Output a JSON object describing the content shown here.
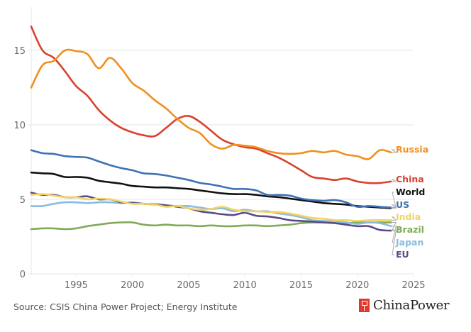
{
  "chart_data": {
    "type": "line",
    "title": "",
    "xlabel": "",
    "ylabel": "",
    "xlim": [
      1991,
      2025
    ],
    "ylim": [
      0,
      17.5
    ],
    "x_ticks": [
      1995,
      2000,
      2005,
      2010,
      2015,
      2020,
      2025
    ],
    "y_ticks": [
      0,
      5,
      10,
      15
    ],
    "grid": "horizontal",
    "legend": "right (direct labels)",
    "x": [
      1991,
      1992,
      1993,
      1994,
      1995,
      1996,
      1997,
      1998,
      1999,
      2000,
      2001,
      2002,
      2003,
      2004,
      2005,
      2006,
      2007,
      2008,
      2009,
      2010,
      2011,
      2012,
      2013,
      2014,
      2015,
      2016,
      2017,
      2018,
      2019,
      2020,
      2021,
      2022,
      2023
    ],
    "series": [
      {
        "name": "Russia",
        "color": "#f0901e",
        "values": [
          12.5,
          14.0,
          14.3,
          15.0,
          14.95,
          14.75,
          13.8,
          14.5,
          13.8,
          12.8,
          12.3,
          11.65,
          11.1,
          10.4,
          9.8,
          9.45,
          8.7,
          8.4,
          8.65,
          8.6,
          8.5,
          8.25,
          8.1,
          8.05,
          8.1,
          8.25,
          8.15,
          8.25,
          8.0,
          7.9,
          7.7,
          8.3,
          8.15
        ]
      },
      {
        "name": "China",
        "color": "#d9412e",
        "values": [
          16.6,
          15.0,
          14.5,
          13.6,
          12.6,
          11.95,
          11.0,
          10.3,
          9.8,
          9.5,
          9.3,
          9.25,
          9.8,
          10.4,
          10.6,
          10.2,
          9.6,
          9.0,
          8.7,
          8.5,
          8.4,
          8.1,
          7.8,
          7.4,
          6.95,
          6.5,
          6.4,
          6.3,
          6.4,
          6.2,
          6.1,
          6.1,
          6.2
        ]
      },
      {
        "name": "US",
        "color": "#3f72b5",
        "values": [
          8.3,
          8.1,
          8.05,
          7.9,
          7.85,
          7.8,
          7.55,
          7.3,
          7.1,
          6.95,
          6.75,
          6.7,
          6.6,
          6.45,
          6.3,
          6.1,
          6.0,
          5.85,
          5.7,
          5.7,
          5.6,
          5.3,
          5.3,
          5.25,
          5.05,
          4.95,
          4.9,
          4.95,
          4.8,
          4.5,
          4.55,
          4.5,
          4.45
        ]
      },
      {
        "name": "World",
        "color": "#111111",
        "values": [
          6.8,
          6.75,
          6.7,
          6.5,
          6.5,
          6.45,
          6.25,
          6.15,
          6.05,
          5.9,
          5.85,
          5.8,
          5.8,
          5.75,
          5.7,
          5.6,
          5.5,
          5.4,
          5.35,
          5.35,
          5.3,
          5.2,
          5.15,
          5.05,
          4.95,
          4.85,
          4.75,
          4.7,
          4.65,
          4.55,
          4.5,
          4.45,
          4.4
        ]
      },
      {
        "name": "India",
        "color": "#f4d35e",
        "values": [
          5.3,
          5.35,
          5.25,
          5.15,
          5.15,
          5.0,
          5.05,
          5.0,
          4.85,
          4.7,
          4.7,
          4.65,
          4.5,
          4.55,
          4.4,
          4.3,
          4.35,
          4.5,
          4.3,
          4.2,
          4.2,
          4.15,
          4.15,
          4.05,
          3.9,
          3.75,
          3.7,
          3.6,
          3.6,
          3.55,
          3.6,
          3.6,
          3.6
        ]
      },
      {
        "name": "Brazil",
        "color": "#7fab57",
        "values": [
          3.0,
          3.05,
          3.05,
          3.0,
          3.05,
          3.2,
          3.3,
          3.4,
          3.45,
          3.45,
          3.3,
          3.25,
          3.3,
          3.25,
          3.25,
          3.2,
          3.25,
          3.2,
          3.2,
          3.25,
          3.25,
          3.2,
          3.25,
          3.3,
          3.4,
          3.45,
          3.45,
          3.45,
          3.4,
          3.45,
          3.45,
          3.45,
          3.45
        ]
      },
      {
        "name": "Japan",
        "color": "#88bde0",
        "values": [
          4.55,
          4.55,
          4.7,
          4.8,
          4.8,
          4.75,
          4.8,
          4.8,
          4.75,
          4.8,
          4.7,
          4.7,
          4.6,
          4.55,
          4.55,
          4.45,
          4.35,
          4.4,
          4.2,
          4.3,
          4.2,
          4.2,
          4.05,
          3.95,
          3.8,
          3.6,
          3.55,
          3.5,
          3.45,
          3.35,
          3.45,
          3.4,
          3.2
        ]
      },
      {
        "name": "EU",
        "color": "#5b4a8b",
        "values": [
          5.45,
          5.3,
          5.3,
          5.15,
          5.15,
          5.2,
          5.0,
          5.0,
          4.8,
          4.75,
          4.7,
          4.65,
          4.6,
          4.5,
          4.4,
          4.2,
          4.1,
          4.0,
          3.95,
          4.1,
          3.9,
          3.85,
          3.75,
          3.6,
          3.55,
          3.5,
          3.45,
          3.4,
          3.3,
          3.2,
          3.2,
          2.95,
          2.9
        ]
      }
    ]
  },
  "footer": {
    "source": "Source: CSIS China Power Project; Energy Institute",
    "brand": "ChinaPower"
  }
}
